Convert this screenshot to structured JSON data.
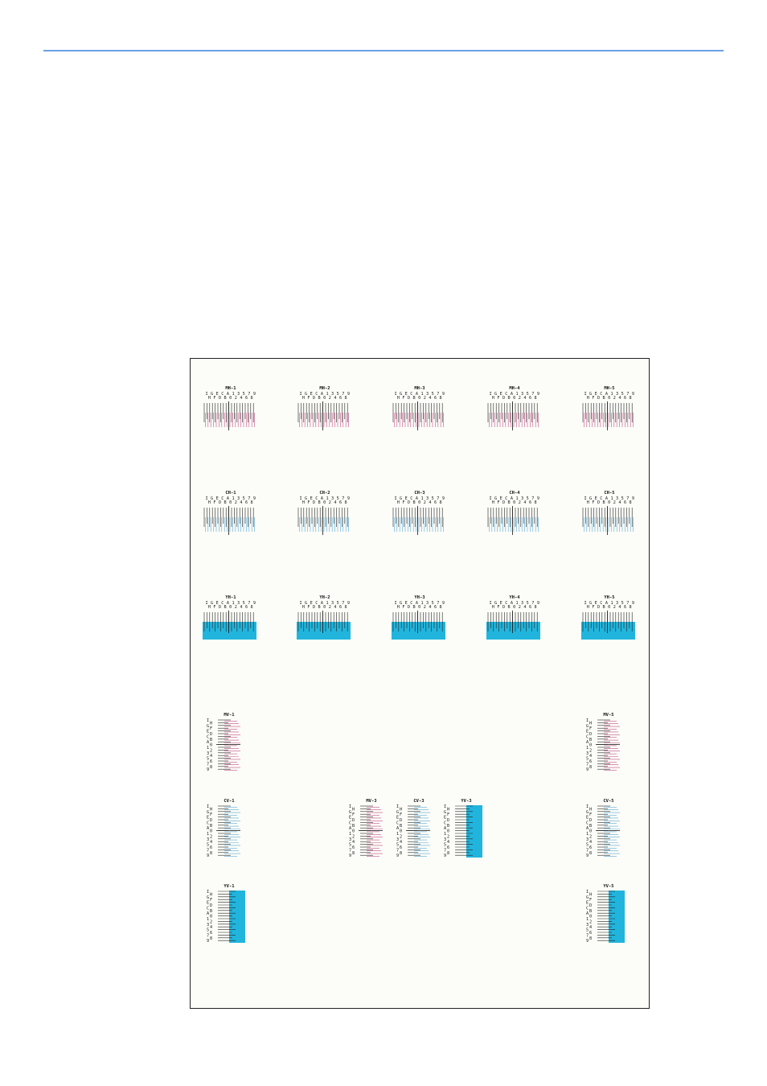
{
  "page": {
    "accent": "#6aa0e6"
  },
  "chart_sheet": {
    "colors": {
      "magenta": "#c2528a",
      "cyan": "#5aaad6",
      "yellow_patch": "#21b5dd",
      "black": "#111111"
    },
    "horizontal_rows": [
      {
        "color": "magenta",
        "labels": [
          "MH-1",
          "MH-2",
          "MH-3",
          "MH-4",
          "MH-5"
        ]
      },
      {
        "color": "cyan",
        "labels": [
          "CH-1",
          "CH-2",
          "CH-3",
          "CH-4",
          "CH-5"
        ]
      },
      {
        "color": "yellow",
        "labels": [
          "YH-1",
          "YH-2",
          "YH-3",
          "YH-4",
          "YH-5"
        ]
      }
    ],
    "h_scale_top": [
      "I",
      "G",
      "E",
      "C",
      "A",
      "1",
      "3",
      "5",
      "7",
      "9"
    ],
    "h_scale_bottom": [
      "H",
      "F",
      "D",
      "B",
      "0",
      "2",
      "4",
      "6",
      "8"
    ],
    "v_scale": [
      "I",
      "H",
      "G",
      "F",
      "E",
      "D",
      "C",
      "B",
      "A",
      "0",
      "1",
      "2",
      "3",
      "4",
      "5",
      "6",
      "7",
      "8",
      "9"
    ],
    "vertical_charts": [
      {
        "label": "MV-1",
        "color": "magenta"
      },
      {
        "label": "MV-5",
        "color": "magenta"
      },
      {
        "label": "CV-1",
        "color": "cyan"
      },
      {
        "label": "MV-3",
        "color": "magenta"
      },
      {
        "label": "CV-3",
        "color": "cyan"
      },
      {
        "label": "YV-3",
        "color": "yellow"
      },
      {
        "label": "CV-5",
        "color": "cyan"
      },
      {
        "label": "YV-1",
        "color": "yellow"
      },
      {
        "label": "YV-5",
        "color": "yellow"
      }
    ]
  }
}
